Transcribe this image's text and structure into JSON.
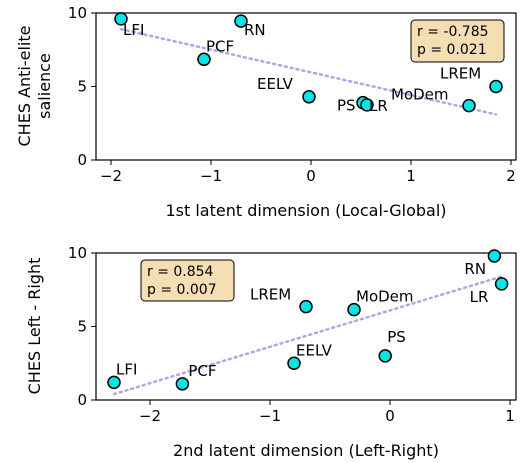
{
  "chart_data": [
    {
      "type": "scatter",
      "xlabel": "1st latent dimension (Local-Global)",
      "ylabel": "CHES Anti-elite salience",
      "xlim": [
        -2.15,
        2.05
      ],
      "ylim": [
        0,
        10
      ],
      "xticks": [
        -2,
        -1,
        0,
        1,
        2
      ],
      "xtick_labels": [
        "−2",
        "−1",
        "0",
        "1",
        "2"
      ],
      "yticks": [
        0,
        5,
        10
      ],
      "ytick_labels": [
        "0",
        "5",
        "10"
      ],
      "points": [
        {
          "label": "LFI",
          "x": -1.9,
          "y": 9.6
        },
        {
          "label": "PCF",
          "x": -1.07,
          "y": 6.85
        },
        {
          "label": "RN",
          "x": -0.7,
          "y": 9.45
        },
        {
          "label": "EELV",
          "x": -0.02,
          "y": 4.3
        },
        {
          "label": "PS",
          "x": 0.52,
          "y": 3.9
        },
        {
          "label": "LR",
          "x": 0.56,
          "y": 3.75
        },
        {
          "label": "MoDem",
          "x": 1.58,
          "y": 3.7
        },
        {
          "label": "LREM",
          "x": 1.85,
          "y": 5.0
        }
      ],
      "trend": {
        "x": [
          -1.9,
          1.85
        ],
        "y": [
          8.9,
          3.1
        ],
        "style": "dotted"
      },
      "stats": {
        "r": "r = -0.785",
        "p": "p = 0.021",
        "position": "top-right"
      },
      "marker_color": "#00e5e5",
      "marker_edge": "#000000",
      "trend_color": "#a9a9e8",
      "stats_box_fill": "#f5deb3"
    },
    {
      "type": "scatter",
      "xlabel": "2nd latent dimension (Left-Right)",
      "ylabel": "CHES Left - Right",
      "xlim": [
        -2.45,
        1.05
      ],
      "ylim": [
        0,
        10
      ],
      "xticks": [
        -2,
        -1,
        0,
        1
      ],
      "xtick_labels": [
        "−2",
        "−1",
        "0",
        "1"
      ],
      "yticks": [
        0,
        5,
        10
      ],
      "ytick_labels": [
        "0",
        "5",
        "10"
      ],
      "points": [
        {
          "label": "LFI",
          "x": -2.3,
          "y": 1.2
        },
        {
          "label": "PCF",
          "x": -1.73,
          "y": 1.1
        },
        {
          "label": "EELV",
          "x": -0.8,
          "y": 2.5
        },
        {
          "label": "LREM",
          "x": -0.7,
          "y": 6.35
        },
        {
          "label": "MoDem",
          "x": -0.3,
          "y": 6.15
        },
        {
          "label": "PS",
          "x": -0.04,
          "y": 3.0
        },
        {
          "label": "RN",
          "x": 0.87,
          "y": 9.8
        },
        {
          "label": "LR",
          "x": 0.93,
          "y": 7.9
        }
      ],
      "trend": {
        "x": [
          -2.3,
          0.93
        ],
        "y": [
          0.4,
          8.4
        ],
        "style": "dotted"
      },
      "stats": {
        "r": "r = 0.854",
        "p": "p = 0.007",
        "position": "top-left"
      },
      "marker_color": "#00e5e5",
      "marker_edge": "#000000",
      "trend_color": "#a9a9e8",
      "stats_box_fill": "#f5deb3"
    }
  ]
}
